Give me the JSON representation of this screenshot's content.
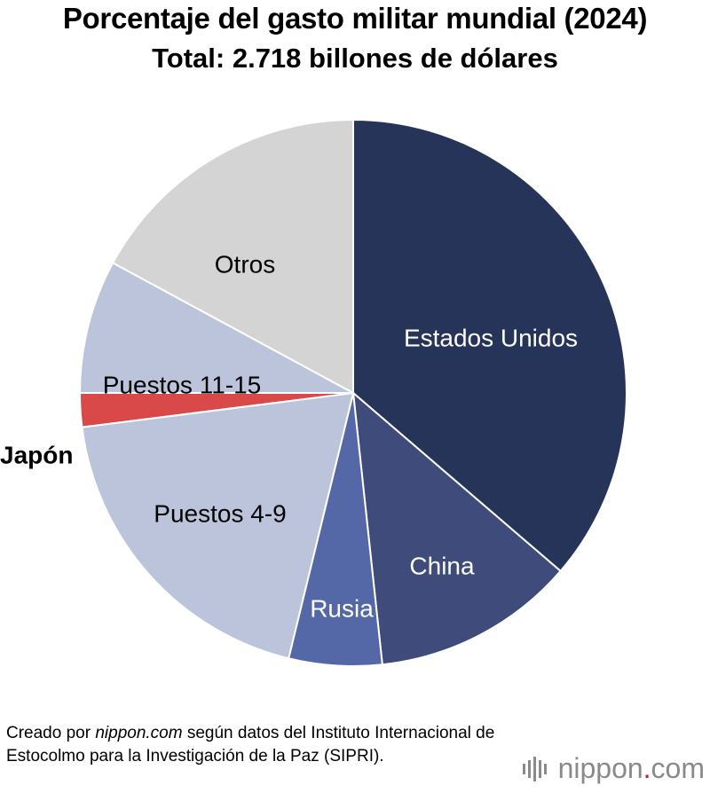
{
  "chart_data": {
    "type": "pie",
    "title": "Porcentaje del gasto militar mundial (2024)",
    "subtitle": "Total: 2.718 billones de dólares",
    "slices": [
      {
        "label": "Estados Unidos",
        "value": 36.3,
        "color": "#263459",
        "text_color": "#ffffff"
      },
      {
        "label": "China",
        "value": 12.0,
        "color": "#3f4b7b",
        "text_color": "#ffffff"
      },
      {
        "label": "Rusia",
        "value": 5.5,
        "color": "#5468a8",
        "text_color": "#ffffff"
      },
      {
        "label": "Puestos 4-9",
        "value": 19.2,
        "color": "#bcc4dc",
        "text_color": "#000000"
      },
      {
        "label": "Japón",
        "value": 2.0,
        "color": "#d9494a",
        "text_color": "#000000"
      },
      {
        "label": "Puestos 11-15",
        "value": 7.9,
        "color": "#bcc4dc",
        "text_color": "#000000"
      },
      {
        "label": "Otros",
        "value": 17.1,
        "color": "#d4d4d4",
        "text_color": "#000000"
      }
    ],
    "start_angle_deg": 0,
    "direction": "clockwise",
    "legend": "none"
  },
  "source": {
    "prefix": "Creado por ",
    "site": "nippon.com",
    "suffix": " según datos del Instituto Internacional de Estocolmo para la Investigación de la Paz (SIPRI)."
  },
  "logo": {
    "name": "nippon",
    "dot": ".",
    "tld": "com"
  }
}
